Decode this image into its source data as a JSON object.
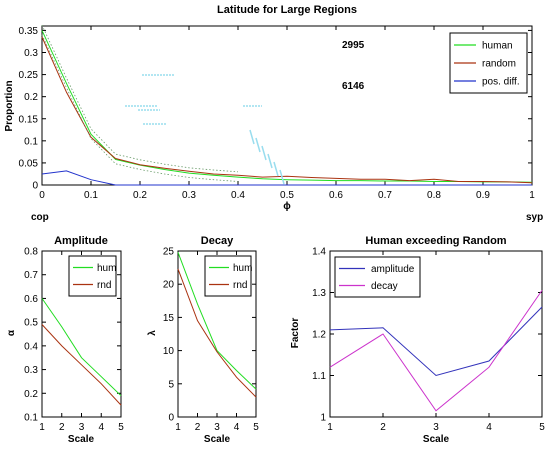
{
  "colors": {
    "human": "#22dd22",
    "random": "#aa3311",
    "pos_diff": "#2233cc",
    "amplitude": "#3333bb",
    "decay": "#cc33cc",
    "artifact": "#99ddee"
  },
  "chart_data": [
    {
      "type": "line",
      "title": "Latitude for Large Regions",
      "xlabel": "ϕ",
      "ylabel": "Proportion",
      "x_ends": [
        "cop",
        "syp"
      ],
      "xlim": [
        0,
        1
      ],
      "ylim": [
        0,
        0.36
      ],
      "xticks": [
        0,
        0.1,
        0.2,
        0.3,
        0.4,
        0.5,
        0.6,
        0.7,
        0.8,
        0.9,
        1
      ],
      "yticks": [
        0,
        0.05,
        0.1,
        0.15,
        0.2,
        0.25,
        0.3,
        0.35
      ],
      "annotations": [
        "2995",
        "6146"
      ],
      "legend_position": "top-right",
      "x": [
        0,
        0.05,
        0.1,
        0.15,
        0.2,
        0.25,
        0.3,
        0.35,
        0.4,
        0.45,
        0.5,
        0.55,
        0.6,
        0.65,
        0.7,
        0.75,
        0.8,
        0.85,
        0.9,
        0.95,
        1
      ],
      "series": [
        {
          "name": "human",
          "color": "#22dd22",
          "values": [
            0.35,
            0.23,
            0.115,
            0.058,
            0.045,
            0.035,
            0.027,
            0.022,
            0.018,
            0.014,
            0.012,
            0.011,
            0.01,
            0.01,
            0.009,
            0.009,
            0.008,
            0.008,
            0.007,
            0.007,
            0.006
          ]
        },
        {
          "name": "random",
          "color": "#aa3311",
          "values": [
            0.335,
            0.21,
            0.108,
            0.06,
            0.046,
            0.038,
            0.031,
            0.025,
            0.022,
            0.018,
            0.02,
            0.017,
            0.015,
            0.013,
            0.013,
            0.01,
            0.013,
            0.008,
            0.008,
            0.007,
            0.005
          ]
        },
        {
          "name": "pos. diff.",
          "color": "#2233cc",
          "values": [
            0.025,
            0.032,
            0.012,
            0,
            0,
            0,
            0,
            0,
            0,
            0,
            0,
            0,
            0,
            0,
            0,
            0,
            0,
            0,
            0,
            0,
            0
          ]
        }
      ]
    },
    {
      "type": "line",
      "title": "Amplitude",
      "xlabel": "Scale",
      "ylabel": "α",
      "xlim": [
        1,
        5
      ],
      "ylim": [
        0.1,
        0.8
      ],
      "xticks": [
        1,
        2,
        3,
        4,
        5
      ],
      "yticks": [
        0.1,
        0.2,
        0.3,
        0.4,
        0.5,
        0.6,
        0.7,
        0.8
      ],
      "legend_position": "top-right",
      "x": [
        1,
        2,
        3,
        4,
        5
      ],
      "series": [
        {
          "name": "hum",
          "color": "#22dd22",
          "values": [
            0.6,
            0.48,
            0.35,
            0.27,
            0.19
          ]
        },
        {
          "name": "rnd",
          "color": "#aa3311",
          "values": [
            0.49,
            0.4,
            0.32,
            0.24,
            0.15
          ]
        }
      ]
    },
    {
      "type": "line",
      "title": "Decay",
      "xlabel": "Scale",
      "ylabel": "λ",
      "xlim": [
        1,
        5
      ],
      "ylim": [
        0,
        25
      ],
      "xticks": [
        1,
        2,
        3,
        4,
        5
      ],
      "yticks": [
        0,
        5,
        10,
        15,
        20,
        25
      ],
      "legend_position": "top-right",
      "x": [
        1,
        2,
        3,
        4,
        5
      ],
      "series": [
        {
          "name": "hum",
          "color": "#22dd22",
          "values": [
            24.8,
            17,
            10,
            7,
            4.2
          ]
        },
        {
          "name": "rnd",
          "color": "#aa3311",
          "values": [
            22.3,
            14.5,
            9.8,
            6,
            3
          ]
        }
      ]
    },
    {
      "type": "line",
      "title": "Human exceeding Random",
      "xlabel": "Scale",
      "ylabel": "Factor",
      "xlim": [
        1,
        5
      ],
      "ylim": [
        1,
        1.4
      ],
      "xticks": [
        1,
        2,
        3,
        4,
        5
      ],
      "yticks": [
        1,
        1.1,
        1.2,
        1.3,
        1.4
      ],
      "legend_position": "top-left",
      "x": [
        1,
        2,
        3,
        4,
        5
      ],
      "series": [
        {
          "name": "amplitude",
          "color": "#3333bb",
          "values": [
            1.21,
            1.215,
            1.1,
            1.135,
            1.265
          ]
        },
        {
          "name": "decay",
          "color": "#cc33cc",
          "values": [
            1.12,
            1.2,
            1.015,
            1.12,
            1.305
          ]
        }
      ]
    }
  ]
}
